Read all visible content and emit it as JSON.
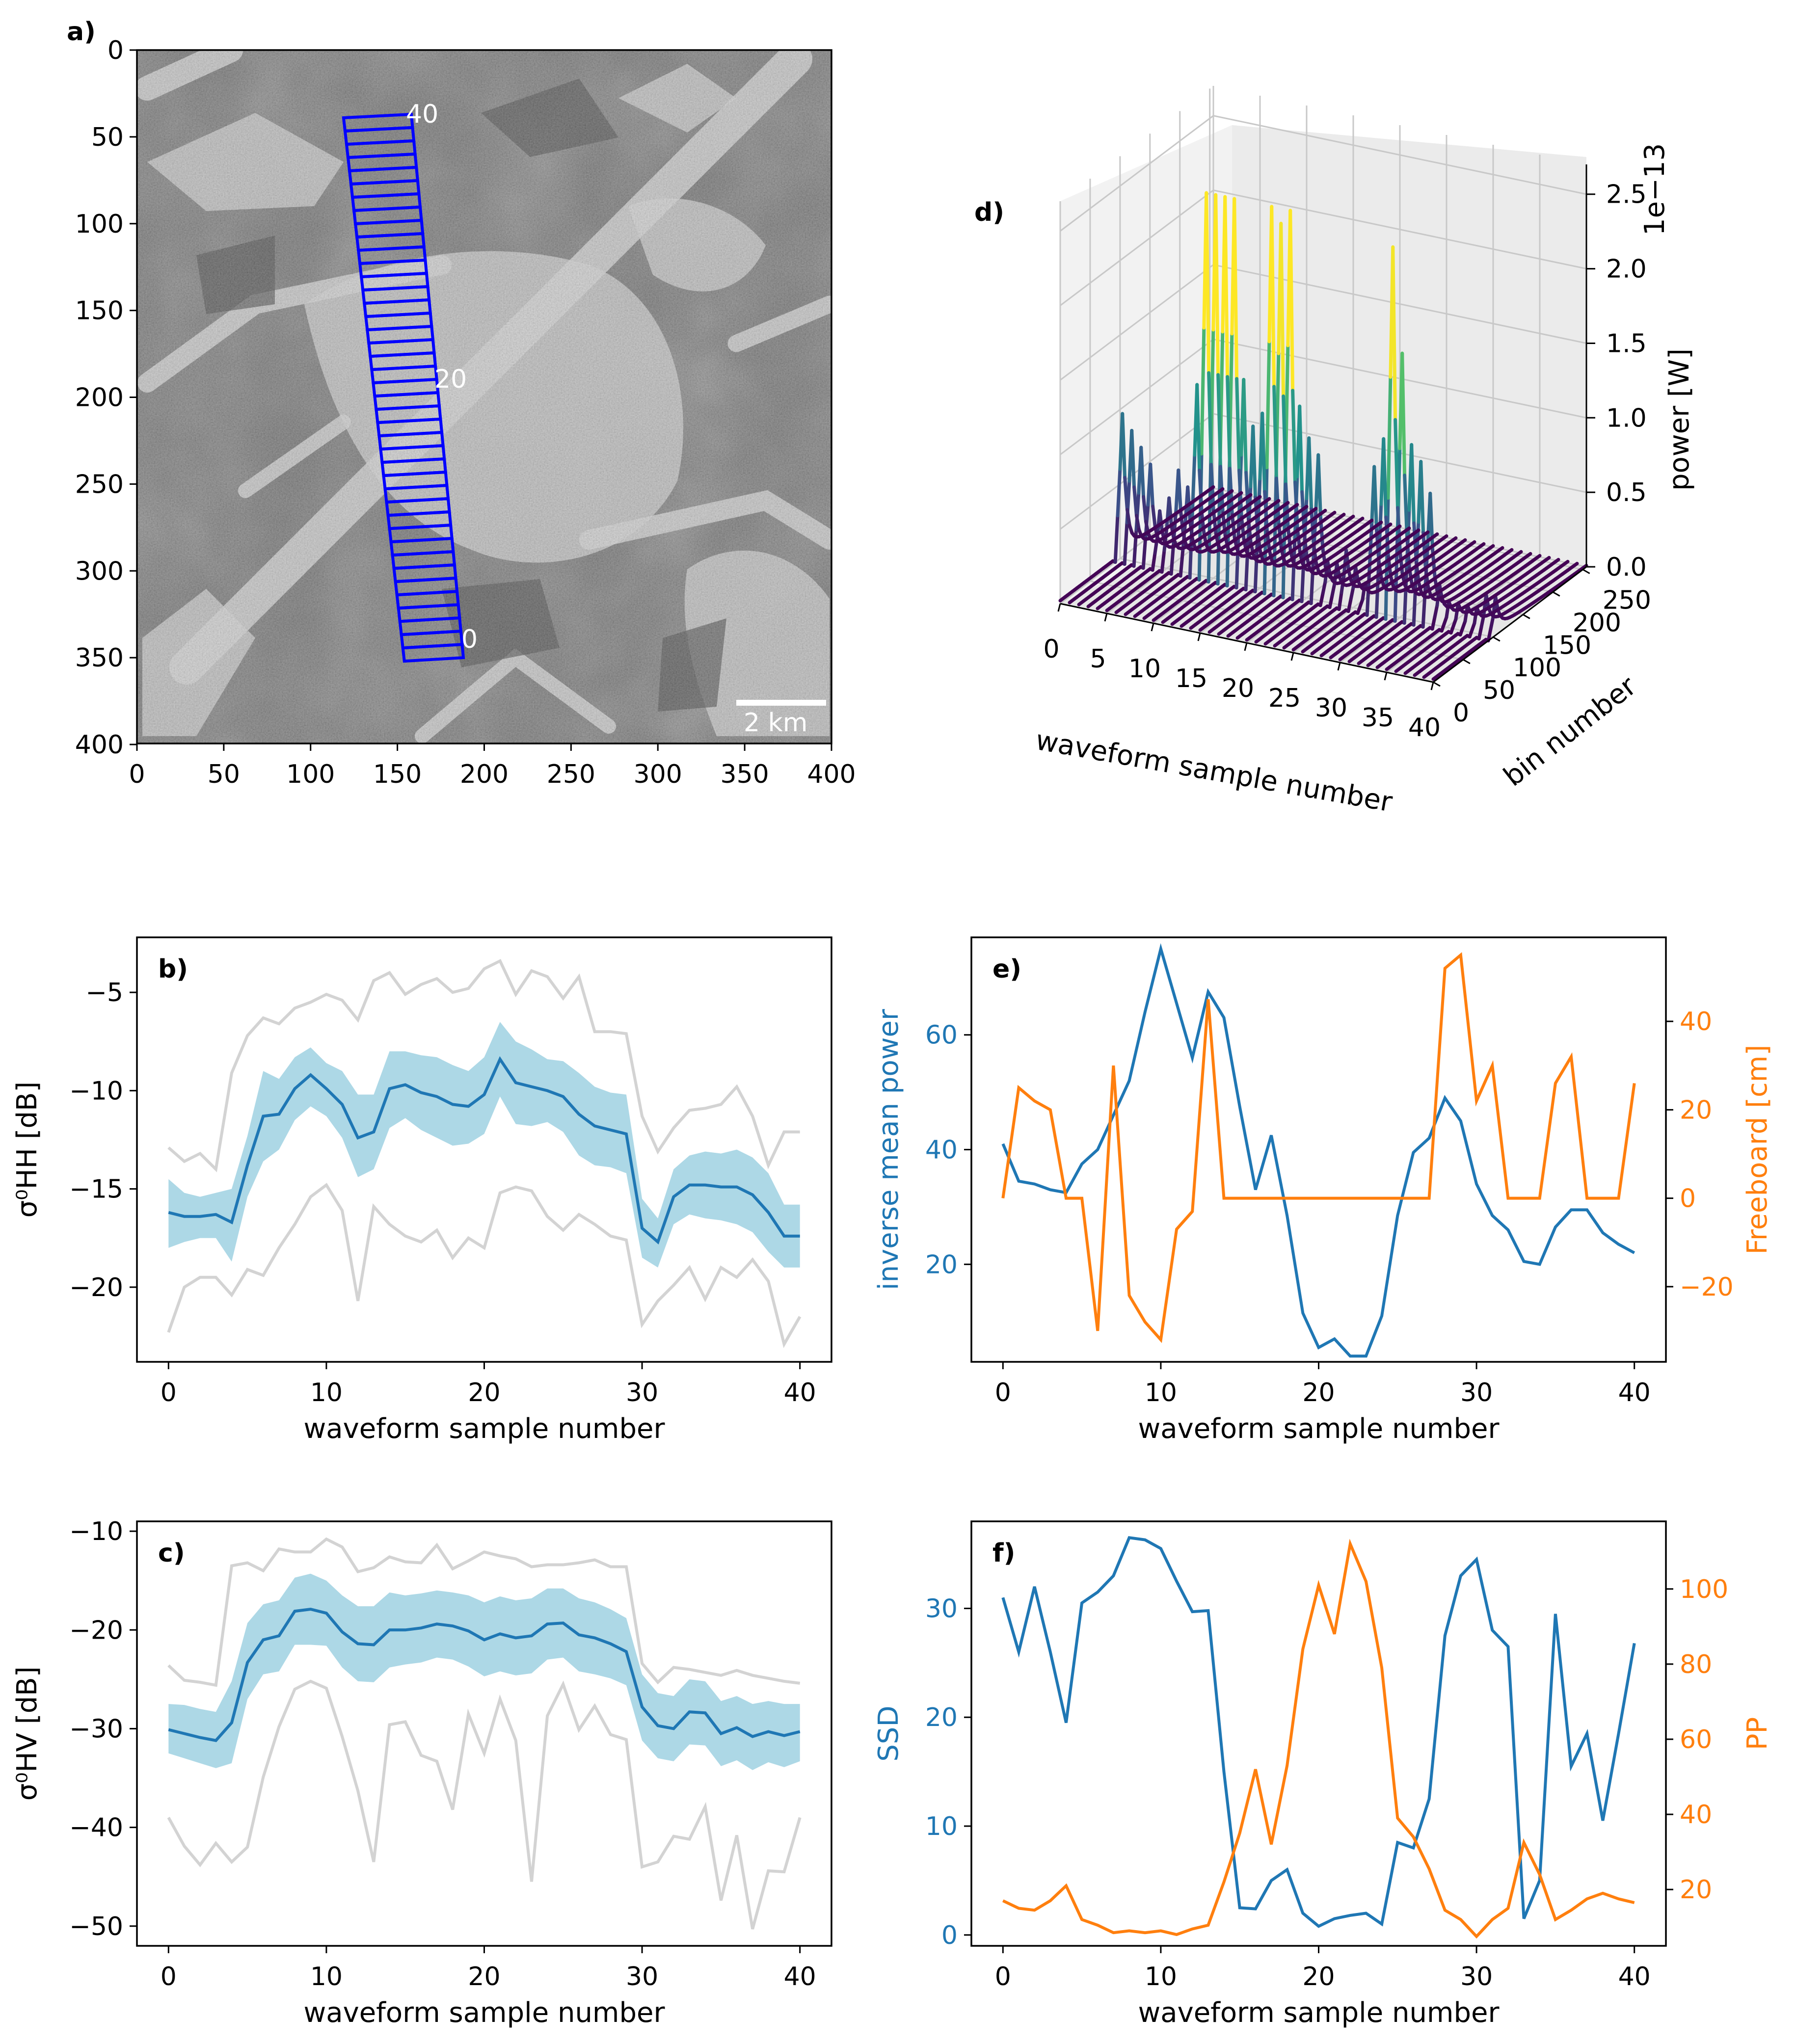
{
  "colors": {
    "blue": "#1f77b4",
    "orange": "#ff7f0e",
    "band": "#add8e6",
    "grey": "#d3d3d3"
  },
  "panel_a": {
    "label": "a)",
    "x_ticks": [
      "0",
      "50",
      "100",
      "150",
      "200",
      "250",
      "300",
      "350",
      "400"
    ],
    "y_ticks": [
      "0",
      "50",
      "100",
      "150",
      "200",
      "250",
      "300",
      "350",
      "400"
    ],
    "track_labels": [
      "40",
      "20",
      "0"
    ],
    "scale_bar": "2 km"
  },
  "panel_d": {
    "label": "d)",
    "x_ticks": [
      "0",
      "5",
      "10",
      "15",
      "20",
      "25",
      "30",
      "35",
      "40"
    ],
    "y_ticks": [
      "0",
      "50",
      "100",
      "150",
      "200",
      "250"
    ],
    "z_ticks": [
      "0.0",
      "0.5",
      "1.0",
      "1.5",
      "2.0",
      "2.5"
    ],
    "xlabel": "waveform sample number",
    "ylabel": "bin number",
    "zlabel": "power [W]",
    "offset_text": "1e−13"
  },
  "chart_data": [
    {
      "id": "b",
      "type": "line",
      "panel_label": "b)",
      "xlabel": "waveform sample number",
      "ylabel": "σ⁰HH [dB]",
      "xlim": [
        -2,
        42
      ],
      "ylim": [
        -23.8,
        -2.2
      ],
      "x_ticks": [
        0,
        10,
        20,
        30,
        40
      ],
      "y_ticks": [
        -5,
        -10,
        -15,
        -20
      ],
      "x_tick_labels": [
        "0",
        "10",
        "20",
        "30",
        "40"
      ],
      "y_tick_labels": [
        "−5",
        "−10",
        "−15",
        "−20"
      ],
      "x": [
        0,
        1,
        2,
        3,
        4,
        5,
        6,
        7,
        8,
        9,
        10,
        11,
        12,
        13,
        14,
        15,
        16,
        17,
        18,
        19,
        20,
        21,
        22,
        23,
        24,
        25,
        26,
        27,
        28,
        29,
        30,
        31,
        32,
        33,
        34,
        35,
        36,
        37,
        38,
        39,
        40
      ],
      "series": [
        {
          "name": "mean",
          "values": [
            -16.2,
            -16.4,
            -16.4,
            -16.3,
            -16.7,
            -13.8,
            -11.3,
            -11.2,
            -9.9,
            -9.2,
            -9.9,
            -10.7,
            -12.4,
            -12.1,
            -9.9,
            -9.7,
            -10.1,
            -10.3,
            -10.7,
            -10.8,
            -10.2,
            -8.4,
            -9.6,
            -9.8,
            -10.0,
            -10.3,
            -11.2,
            -11.8,
            -12.0,
            -12.2,
            -17.0,
            -17.7,
            -15.4,
            -14.8,
            -14.8,
            -14.9,
            -14.9,
            -15.3,
            -16.2,
            -17.4,
            -17.4
          ]
        },
        {
          "name": "band_upper",
          "values": [
            -14.5,
            -15.2,
            -15.4,
            -15.2,
            -15.0,
            -12.3,
            -9.0,
            -9.4,
            -8.3,
            -7.8,
            -8.6,
            -9.0,
            -10.2,
            -10.2,
            -8.0,
            -8.0,
            -8.2,
            -8.3,
            -8.7,
            -9.0,
            -8.3,
            -6.5,
            -7.5,
            -7.9,
            -8.4,
            -8.5,
            -9.1,
            -9.8,
            -10.1,
            -10.2,
            -15.5,
            -16.5,
            -14.0,
            -13.3,
            -13.1,
            -13.2,
            -13.0,
            -13.4,
            -14.2,
            -15.8,
            -15.8
          ]
        },
        {
          "name": "band_lower",
          "values": [
            -18.0,
            -17.7,
            -17.5,
            -17.5,
            -18.7,
            -15.4,
            -13.6,
            -13.0,
            -11.5,
            -10.8,
            -11.3,
            -12.4,
            -14.4,
            -14.0,
            -11.9,
            -11.4,
            -12.0,
            -12.4,
            -12.8,
            -12.7,
            -12.2,
            -10.3,
            -11.7,
            -11.8,
            -11.6,
            -12.1,
            -13.3,
            -13.8,
            -13.9,
            -14.2,
            -18.5,
            -19.0,
            -16.8,
            -16.3,
            -16.5,
            -16.6,
            -16.8,
            -17.2,
            -18.2,
            -19.0,
            -19.0
          ]
        },
        {
          "name": "max",
          "values": [
            -12.9,
            -13.6,
            -13.2,
            -14.0,
            -9.1,
            -7.2,
            -6.3,
            -6.6,
            -5.8,
            -5.5,
            -5.1,
            -5.4,
            -6.4,
            -4.4,
            -4.0,
            -5.1,
            -4.6,
            -4.3,
            -5.0,
            -4.8,
            -3.8,
            -3.4,
            -5.1,
            -3.9,
            -4.2,
            -5.3,
            -4.2,
            -7.0,
            -7.0,
            -7.1,
            -11.3,
            -13.1,
            -11.9,
            -11.0,
            -10.9,
            -10.7,
            -9.8,
            -11.3,
            -13.8,
            -12.1,
            -12.1
          ]
        },
        {
          "name": "min",
          "values": [
            -22.3,
            -20.0,
            -19.5,
            -19.5,
            -20.4,
            -19.1,
            -19.4,
            -18.0,
            -16.8,
            -15.4,
            -14.8,
            -16.1,
            -20.7,
            -15.9,
            -16.8,
            -17.4,
            -17.7,
            -17.1,
            -18.5,
            -17.5,
            -18.0,
            -15.2,
            -14.9,
            -15.1,
            -16.4,
            -17.1,
            -16.3,
            -16.8,
            -17.4,
            -17.6,
            -21.9,
            -20.7,
            -19.9,
            -19.0,
            -20.6,
            -19.0,
            -19.5,
            -18.6,
            -19.7,
            -22.9,
            -21.5
          ]
        }
      ]
    },
    {
      "id": "c",
      "type": "line",
      "panel_label": "c)",
      "xlabel": "waveform sample number",
      "ylabel": "σ⁰HV [dB]",
      "xlim": [
        -2,
        42
      ],
      "ylim": [
        -52,
        -9
      ],
      "x_ticks": [
        0,
        10,
        20,
        30,
        40
      ],
      "y_ticks": [
        -10,
        -20,
        -30,
        -40,
        -50
      ],
      "x_tick_labels": [
        "0",
        "10",
        "20",
        "30",
        "40"
      ],
      "y_tick_labels": [
        "−10",
        "−20",
        "−30",
        "−40",
        "−50"
      ],
      "x": [
        0,
        1,
        2,
        3,
        4,
        5,
        6,
        7,
        8,
        9,
        10,
        11,
        12,
        13,
        14,
        15,
        16,
        17,
        18,
        19,
        20,
        21,
        22,
        23,
        24,
        25,
        26,
        27,
        28,
        29,
        30,
        31,
        32,
        33,
        34,
        35,
        36,
        37,
        38,
        39,
        40
      ],
      "series": [
        {
          "name": "mean",
          "values": [
            -30.1,
            -30.5,
            -30.9,
            -31.2,
            -29.4,
            -23.3,
            -21.0,
            -20.6,
            -18.1,
            -17.9,
            -18.3,
            -20.2,
            -21.4,
            -21.5,
            -20.0,
            -20.0,
            -19.8,
            -19.4,
            -19.6,
            -20.1,
            -21.0,
            -20.4,
            -20.8,
            -20.6,
            -19.4,
            -19.3,
            -20.5,
            -20.8,
            -21.4,
            -22.2,
            -27.8,
            -29.7,
            -30.0,
            -28.3,
            -28.4,
            -30.5,
            -29.9,
            -30.8,
            -30.3,
            -30.7,
            -30.3
          ]
        },
        {
          "name": "band_upper",
          "values": [
            -27.5,
            -27.6,
            -28.0,
            -28.3,
            -25.2,
            -19.3,
            -17.4,
            -17.0,
            -14.7,
            -14.3,
            -15.0,
            -16.5,
            -17.6,
            -17.6,
            -16.2,
            -16.5,
            -16.3,
            -16.0,
            -16.2,
            -16.5,
            -17.2,
            -16.6,
            -17.0,
            -16.8,
            -15.8,
            -15.8,
            -16.8,
            -17.2,
            -17.9,
            -18.8,
            -24.5,
            -26.4,
            -26.7,
            -25.0,
            -25.2,
            -27.2,
            -26.7,
            -27.5,
            -27.2,
            -27.5,
            -27.5
          ]
        },
        {
          "name": "band_lower",
          "values": [
            -32.5,
            -33.0,
            -33.5,
            -34.0,
            -33.5,
            -27.0,
            -24.5,
            -24.2,
            -21.5,
            -21.5,
            -21.6,
            -23.8,
            -25.2,
            -25.3,
            -23.8,
            -23.5,
            -23.3,
            -22.8,
            -23.0,
            -23.7,
            -24.7,
            -24.2,
            -24.6,
            -24.4,
            -23.0,
            -22.8,
            -24.2,
            -24.5,
            -24.9,
            -25.6,
            -31.2,
            -33.0,
            -33.3,
            -31.6,
            -31.7,
            -33.8,
            -33.2,
            -34.2,
            -33.4,
            -33.9,
            -33.3
          ]
        },
        {
          "name": "max",
          "values": [
            -23.6,
            -25.1,
            -25.3,
            -25.6,
            -13.5,
            -13.2,
            -14.0,
            -11.8,
            -12.1,
            -12.1,
            -10.8,
            -11.6,
            -14.1,
            -13.7,
            -12.6,
            -13.1,
            -13.2,
            -11.4,
            -13.8,
            -13.0,
            -12.1,
            -12.5,
            -12.8,
            -13.6,
            -13.4,
            -13.4,
            -13.2,
            -12.9,
            -13.6,
            -13.6,
            -23.4,
            -25.3,
            -23.8,
            -24.0,
            -24.3,
            -24.6,
            -24.1,
            -24.6,
            -24.9,
            -25.2,
            -25.4
          ]
        },
        {
          "name": "min",
          "values": [
            -39.0,
            -41.9,
            -43.8,
            -41.6,
            -43.5,
            -42.0,
            -34.9,
            -29.8,
            -26.0,
            -25.2,
            -25.9,
            -30.8,
            -36.3,
            -43.5,
            -29.6,
            -29.3,
            -32.7,
            -33.3,
            -38.2,
            -28.5,
            -32.5,
            -27.0,
            -31.2,
            -45.5,
            -28.7,
            -25.5,
            -30.1,
            -27.7,
            -30.6,
            -31.1,
            -44.0,
            -43.5,
            -40.9,
            -41.2,
            -37.9,
            -47.4,
            -40.8,
            -50.3,
            -44.4,
            -44.5,
            -39.0
          ]
        }
      ]
    },
    {
      "id": "e",
      "type": "line",
      "panel_label": "e)",
      "xlabel": "waveform sample number",
      "ylabel_left": "inverse mean power",
      "ylabel_right": "Freeboard [cm]",
      "xlim": [
        -2,
        42
      ],
      "ylim_left": [
        3,
        77
      ],
      "ylim_right": [
        -37,
        59
      ],
      "x_ticks": [
        0,
        10,
        20,
        30,
        40
      ],
      "x_tick_labels": [
        "0",
        "10",
        "20",
        "30",
        "40"
      ],
      "y_ticks_left": [
        20,
        40,
        60
      ],
      "y_tick_labels_left": [
        "20",
        "40",
        "60"
      ],
      "y_ticks_right": [
        -20,
        0,
        20,
        40
      ],
      "y_tick_labels_right": [
        "−20",
        "0",
        "20",
        "40"
      ],
      "x": [
        0,
        1,
        2,
        3,
        4,
        5,
        6,
        7,
        8,
        9,
        10,
        11,
        12,
        13,
        14,
        15,
        16,
        17,
        18,
        19,
        20,
        21,
        22,
        23,
        24,
        25,
        26,
        27,
        28,
        29,
        30,
        31,
        32,
        33,
        34,
        35,
        36,
        37,
        38,
        39,
        40
      ],
      "series": [
        {
          "name": "inverse mean power",
          "axis": "left",
          "values": [
            41.0,
            34.5,
            34.0,
            33.0,
            32.5,
            37.5,
            40.0,
            46.0,
            52.0,
            64.0,
            75.0,
            65.5,
            56.0,
            67.5,
            63.0,
            47.5,
            33.0,
            42.5,
            28.5,
            11.5,
            5.5,
            7.0,
            4.0,
            4.0,
            11.0,
            28.5,
            39.5,
            42.0,
            49.0,
            45.0,
            34.0,
            28.5,
            26.0,
            20.5,
            20.0,
            26.5,
            29.5,
            29.5,
            25.5,
            23.5,
            22.0
          ]
        },
        {
          "name": "Freeboard",
          "axis": "right",
          "values": [
            0,
            25,
            22,
            20,
            0,
            0,
            -30,
            30,
            -22,
            -28,
            -32,
            -7,
            -3,
            45,
            0,
            0,
            0,
            0,
            0,
            0,
            0,
            0,
            0,
            0,
            0,
            0,
            0,
            0,
            52,
            55,
            22,
            30,
            0,
            0,
            0,
            26,
            32,
            0,
            0,
            0,
            26
          ]
        }
      ]
    },
    {
      "id": "f",
      "type": "line",
      "panel_label": "f)",
      "xlabel": "waveform sample number",
      "ylabel_left": "SSD",
      "ylabel_right": "PP",
      "xlim": [
        -2,
        42
      ],
      "ylim_left": [
        -1,
        38
      ],
      "ylim_right": [
        5,
        118
      ],
      "x_ticks": [
        0,
        10,
        20,
        30,
        40
      ],
      "x_tick_labels": [
        "0",
        "10",
        "20",
        "30",
        "40"
      ],
      "y_ticks_left": [
        0,
        10,
        20,
        30
      ],
      "y_tick_labels_left": [
        "0",
        "10",
        "20",
        "30"
      ],
      "y_ticks_right": [
        20,
        40,
        60,
        80,
        100
      ],
      "y_tick_labels_right": [
        "20",
        "40",
        "60",
        "80",
        "100"
      ],
      "x": [
        0,
        1,
        2,
        3,
        4,
        5,
        6,
        7,
        8,
        9,
        10,
        11,
        12,
        13,
        14,
        15,
        16,
        17,
        18,
        19,
        20,
        21,
        22,
        23,
        24,
        25,
        26,
        27,
        28,
        29,
        30,
        31,
        32,
        33,
        34,
        35,
        36,
        37,
        38,
        39,
        40
      ],
      "series": [
        {
          "name": "SSD",
          "axis": "left",
          "values": [
            31.0,
            26.0,
            32.0,
            26.0,
            19.5,
            30.5,
            31.5,
            33.0,
            36.5,
            36.3,
            35.5,
            32.5,
            29.7,
            29.8,
            15.0,
            2.5,
            2.4,
            5.0,
            6.0,
            2.0,
            0.8,
            1.5,
            1.8,
            2.0,
            1.0,
            8.5,
            8.0,
            12.5,
            27.5,
            33.0,
            34.5,
            28.0,
            26.5,
            1.5,
            5.0,
            29.5,
            15.5,
            18.5,
            10.5,
            18.5,
            26.8
          ]
        },
        {
          "name": "PP",
          "axis": "right",
          "values": [
            17.0,
            15.0,
            14.5,
            17.0,
            21.0,
            12.0,
            10.5,
            8.5,
            9.0,
            8.5,
            9.0,
            8.0,
            9.5,
            10.5,
            22.0,
            35.0,
            52.0,
            32.0,
            53.0,
            84.0,
            101.0,
            88.0,
            112.0,
            102.0,
            79.0,
            39.0,
            34.0,
            25.5,
            14.5,
            12.0,
            7.5,
            12.0,
            15.0,
            32.5,
            24.0,
            12.0,
            14.5,
            17.5,
            19.0,
            17.5,
            16.5
          ]
        }
      ]
    }
  ]
}
